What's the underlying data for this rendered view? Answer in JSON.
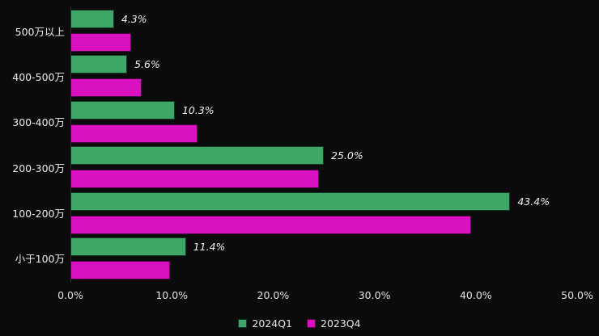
{
  "chart_data": {
    "type": "bar",
    "orientation": "horizontal",
    "title": "",
    "categories": [
      "500万以上",
      "400-500万",
      "300-400万",
      "200-300万",
      "100-200万",
      "小于100万"
    ],
    "series": [
      {
        "name": "2024Q1",
        "color": "#3ea767",
        "values": [
          4.3,
          5.6,
          10.3,
          25.0,
          43.4,
          11.4
        ],
        "data_labels": [
          "4.3%",
          "5.6%",
          "10.3%",
          "25.0%",
          "43.4%",
          "11.4%"
        ]
      },
      {
        "name": "2023Q4",
        "color": "#d911c1",
        "values": [
          6.0,
          7.0,
          12.5,
          24.5,
          39.5,
          9.8
        ],
        "data_labels": null
      }
    ],
    "xlim": [
      0,
      50
    ],
    "x_ticks": [
      "0.0%",
      "10.0%",
      "20.0%",
      "30.0%",
      "40.0%",
      "50.0%"
    ],
    "grid": false,
    "legend_position": "bottom",
    "background_color": "#0b0b0c",
    "text_color": "#ececec"
  }
}
